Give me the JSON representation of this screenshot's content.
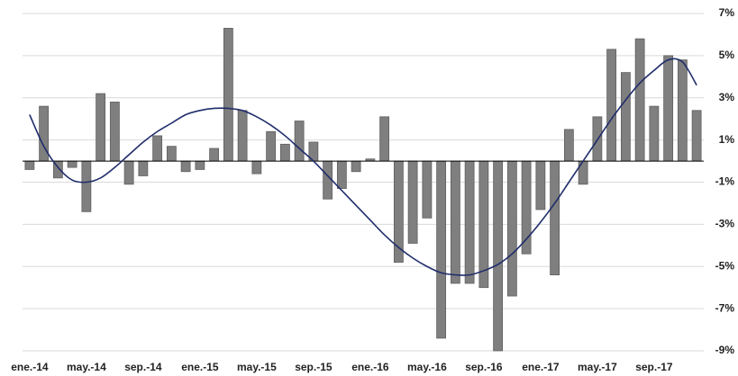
{
  "chart_data": {
    "type": "bar",
    "categories": [
      "ene.-14",
      null,
      null,
      null,
      "may.-14",
      null,
      null,
      null,
      "sep.-14",
      null,
      null,
      null,
      "ene.-15",
      null,
      null,
      null,
      "may.-15",
      null,
      null,
      null,
      "sep.-15",
      null,
      null,
      null,
      "ene.-16",
      null,
      null,
      null,
      "may.-16",
      null,
      null,
      null,
      "sep.-16",
      null,
      null,
      null,
      "ene.-17",
      null,
      null,
      null,
      "may.-17",
      null,
      null,
      null,
      "sep.-17",
      null,
      null,
      null
    ],
    "series": [
      {
        "type": "bar",
        "color": "#7f7f7f",
        "values": [
          -0.4,
          2.6,
          -0.8,
          -0.3,
          -2.4,
          3.2,
          2.8,
          -1.1,
          -0.7,
          1.2,
          0.7,
          -0.5,
          -0.4,
          0.6,
          6.3,
          2.4,
          -0.6,
          1.4,
          0.8,
          1.9,
          0.9,
          -1.8,
          -1.3,
          -0.5,
          0.1,
          2.1,
          -4.8,
          -3.9,
          -2.7,
          -8.4,
          -5.8,
          -5.8,
          -6.0,
          -9.0,
          -6.4,
          -4.4,
          -2.3,
          -5.4,
          1.5,
          -1.1,
          2.1,
          5.3,
          4.2,
          5.8,
          2.6,
          5.0,
          4.8,
          2.4
        ]
      },
      {
        "type": "line",
        "color": "#1f2d6b",
        "values": [
          2.2,
          0.7,
          -0.3,
          -0.9,
          -1.0,
          -0.8,
          -0.3,
          0.3,
          0.9,
          1.4,
          1.8,
          2.2,
          2.4,
          2.5,
          2.5,
          2.4,
          2.1,
          1.7,
          1.2,
          0.6,
          0.0,
          -0.7,
          -1.4,
          -2.1,
          -2.8,
          -3.5,
          -4.1,
          -4.6,
          -5.0,
          -5.3,
          -5.4,
          -5.4,
          -5.2,
          -4.9,
          -4.4,
          -3.7,
          -2.9,
          -2.0,
          -1.0,
          0.0,
          1.0,
          2.0,
          2.9,
          3.7,
          4.3,
          4.8,
          4.7,
          3.6
        ]
      }
    ],
    "ylim": [
      -9,
      7
    ],
    "yticks": [
      {
        "value": 7,
        "label": "7%"
      },
      {
        "value": 5,
        "label": "5%"
      },
      {
        "value": 3,
        "label": "3%"
      },
      {
        "value": 1,
        "label": "1%"
      },
      {
        "value": -1,
        "label": "-1%"
      },
      {
        "value": -3,
        "label": "-3%"
      },
      {
        "value": -5,
        "label": "-5%"
      },
      {
        "value": -7,
        "label": "-7%"
      },
      {
        "value": -9,
        "label": "-9%"
      }
    ],
    "grid": true
  }
}
